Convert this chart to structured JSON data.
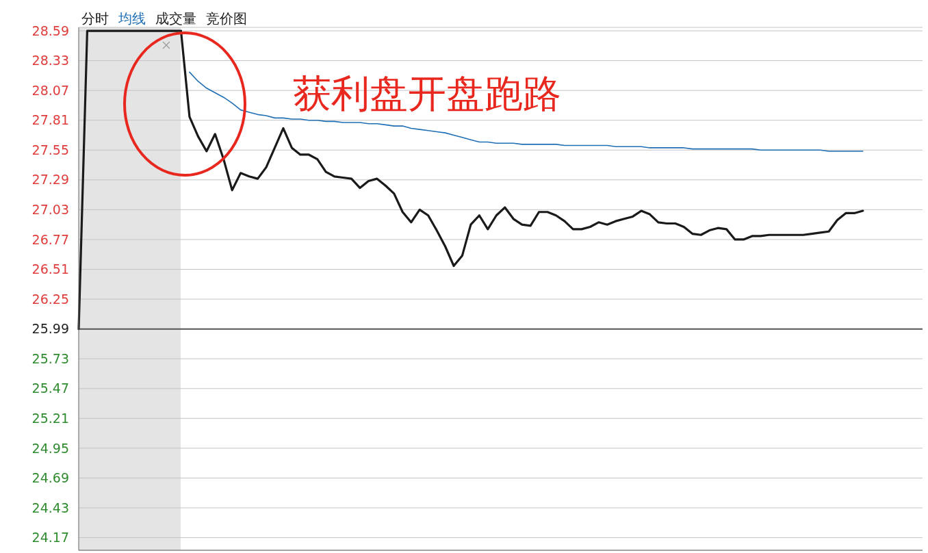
{
  "chart_data": {
    "type": "line",
    "annotations": [
      "获利盘开盘跑路",
      "成交量",
      "竞价图"
    ],
    "categories": [
      null,
      null,
      null,
      null,
      null,
      null,
      null,
      null,
      null,
      null,
      null,
      null,
      null,
      null,
      null,
      null,
      null,
      null,
      null,
      null,
      null,
      null,
      null,
      null,
      null,
      null,
      null,
      null,
      null,
      null,
      null,
      null,
      null,
      null,
      null,
      null,
      null,
      null,
      null,
      null,
      null,
      null,
      null,
      null,
      null,
      null,
      null,
      null,
      null,
      null,
      null,
      null,
      null,
      null,
      null,
      null,
      null,
      null,
      null,
      null,
      null,
      null,
      null,
      null,
      null,
      null,
      null,
      null,
      null,
      null,
      null,
      null,
      null,
      null,
      null,
      null,
      null,
      null,
      null,
      null,
      null,
      null,
      null,
      null,
      null,
      null,
      null,
      null,
      null,
      null,
      null,
      null,
      null,
      null,
      null,
      null,
      null,
      null,
      null,
      null
    ],
    "series": [
      {
        "name": "分时",
        "color": "#1a1a1a",
        "values": [
          25.99,
          28.59,
          28.59,
          28.59,
          28.59,
          28.59,
          28.59,
          28.59,
          28.59,
          28.59,
          28.59,
          28.59,
          28.59,
          27.84,
          27.67,
          27.54,
          27.69,
          27.47,
          27.2,
          27.35,
          27.32,
          27.3,
          27.4,
          27.57,
          27.74,
          27.57,
          27.51,
          27.51,
          27.47,
          27.36,
          27.32,
          27.31,
          27.3,
          27.22,
          27.28,
          27.3,
          27.24,
          27.17,
          27.01,
          26.92,
          27.03,
          26.98,
          26.85,
          26.71,
          26.54,
          26.63,
          26.9,
          26.98,
          26.86,
          26.98,
          27.05,
          26.95,
          26.9,
          26.89,
          27.01,
          27.01,
          26.98,
          26.93,
          26.86,
          26.86,
          26.88,
          26.92,
          26.9,
          26.93,
          26.95,
          26.97,
          27.02,
          26.99,
          26.92,
          26.91,
          26.91,
          26.88,
          26.82,
          26.81,
          26.85,
          26.87,
          26.86,
          26.77,
          26.77,
          26.8,
          26.8,
          26.81,
          26.81,
          26.81,
          26.81,
          26.81,
          26.82,
          26.83,
          26.84,
          26.94,
          27.0,
          27.0,
          27.02,
          null,
          null,
          null,
          null,
          null,
          null,
          null
        ]
      },
      {
        "name": "均线",
        "color": "#1f6fb5",
        "values": [
          null,
          null,
          null,
          null,
          null,
          null,
          null,
          null,
          null,
          null,
          null,
          null,
          null,
          28.23,
          28.15,
          28.09,
          28.05,
          28.01,
          27.96,
          27.9,
          27.88,
          27.86,
          27.85,
          27.83,
          27.83,
          27.82,
          27.82,
          27.81,
          27.81,
          27.8,
          27.8,
          27.79,
          27.79,
          27.79,
          27.78,
          27.78,
          27.77,
          27.76,
          27.76,
          27.74,
          27.73,
          27.72,
          27.71,
          27.7,
          27.68,
          27.66,
          27.64,
          27.62,
          27.62,
          27.61,
          27.61,
          27.61,
          27.6,
          27.6,
          27.6,
          27.6,
          27.6,
          27.59,
          27.59,
          27.59,
          27.59,
          27.59,
          27.59,
          27.58,
          27.58,
          27.58,
          27.58,
          27.57,
          27.57,
          27.57,
          27.57,
          27.57,
          27.56,
          27.56,
          27.56,
          27.56,
          27.56,
          27.56,
          27.56,
          27.56,
          27.55,
          27.55,
          27.55,
          27.55,
          27.55,
          27.55,
          27.55,
          27.55,
          27.54,
          27.54,
          27.54,
          27.54,
          27.54,
          null,
          null,
          null,
          null,
          null,
          null,
          null
        ]
      }
    ],
    "ylim": [
      24.06,
      28.62
    ],
    "yticks": [
      24.17,
      24.43,
      24.69,
      24.95,
      25.21,
      25.47,
      25.73,
      25.99,
      26.25,
      26.51,
      26.77,
      27.03,
      27.29,
      27.55,
      27.81,
      28.07,
      28.33,
      28.59
    ],
    "ref_lines": [
      {
        "axis": "y",
        "value": 25.99,
        "color": "#555555"
      }
    ],
    "grid": "y",
    "tick_labels": "y"
  }
}
